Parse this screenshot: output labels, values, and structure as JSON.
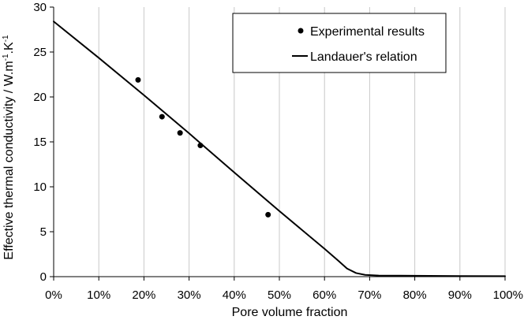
{
  "chart_data": {
    "type": "scatter",
    "title": "",
    "xlabel": "Pore volume fraction",
    "ylabel": {
      "base": "Effective thermal conductivity / W.m",
      "sup1": "-1",
      "mid": ".K",
      "sup2": "-1"
    },
    "xlim": [
      0,
      1
    ],
    "ylim": [
      0,
      30
    ],
    "x_ticks": [
      0,
      0.1,
      0.2,
      0.3,
      0.4,
      0.5,
      0.6,
      0.7,
      0.8,
      0.9,
      1.0
    ],
    "x_tick_labels": [
      "0%",
      "10%",
      "20%",
      "30%",
      "40%",
      "50%",
      "60%",
      "70%",
      "80%",
      "90%",
      "100%"
    ],
    "y_ticks": [
      0,
      5,
      10,
      15,
      20,
      25,
      30
    ],
    "y_tick_labels": [
      "0",
      "5",
      "10",
      "15",
      "20",
      "25",
      "30"
    ],
    "grid": "vertical",
    "legend_position": "top-right",
    "series": [
      {
        "name": "Experimental results",
        "kind": "scatter",
        "color": "#000000",
        "points": [
          {
            "x": 0.187,
            "y": 21.9
          },
          {
            "x": 0.24,
            "y": 17.8
          },
          {
            "x": 0.28,
            "y": 16.0
          },
          {
            "x": 0.325,
            "y": 14.6
          },
          {
            "x": 0.475,
            "y": 6.9
          }
        ]
      },
      {
        "name": "Landauer's relation",
        "kind": "line",
        "color": "#000000",
        "points": [
          {
            "x": 0.0,
            "y": 28.4
          },
          {
            "x": 0.1,
            "y": 24.35
          },
          {
            "x": 0.2,
            "y": 20.2
          },
          {
            "x": 0.3,
            "y": 15.95
          },
          {
            "x": 0.4,
            "y": 11.6
          },
          {
            "x": 0.5,
            "y": 7.3
          },
          {
            "x": 0.6,
            "y": 3.1
          },
          {
            "x": 0.63,
            "y": 1.8
          },
          {
            "x": 0.65,
            "y": 0.9
          },
          {
            "x": 0.67,
            "y": 0.4
          },
          {
            "x": 0.69,
            "y": 0.2
          },
          {
            "x": 0.72,
            "y": 0.12
          },
          {
            "x": 0.8,
            "y": 0.1
          },
          {
            "x": 0.9,
            "y": 0.07
          },
          {
            "x": 1.0,
            "y": 0.05
          }
        ]
      }
    ]
  }
}
